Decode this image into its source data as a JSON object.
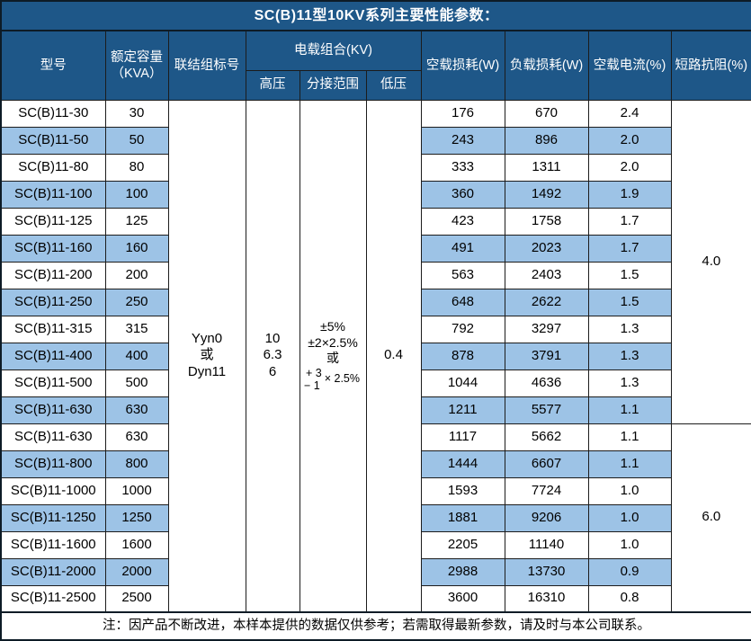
{
  "title": "SC(B)11型10KV系列主要性能参数：",
  "colors": {
    "header_bg": "#1E5788",
    "stripe_bg": "#9DC3E6",
    "header_text": "#FFFFFF",
    "body_text": "#000000",
    "border": "#1C1C1C"
  },
  "header": {
    "model": "型号",
    "capacity_line1": "额定容量",
    "capacity_line2": "（KVA）",
    "connection_group": "联结组标号",
    "voltage_combo": "电载组合(KV)",
    "high_voltage": "高压",
    "tap_range": "分接范围",
    "low_voltage": "低压",
    "no_load_loss": "空载损耗(W)",
    "load_loss": "负载损耗(W)",
    "no_load_current": "空载电流(%)",
    "short_circuit_impedance": "短路抗阻(%)"
  },
  "merged": {
    "connection_lines": [
      "Yyn0",
      "或",
      "Dyn11"
    ],
    "high_voltage_lines": [
      "10",
      "6.3",
      "6"
    ],
    "tap_lines": [
      "±5%",
      "±2×2.5%",
      "或"
    ],
    "tap_fraction": {
      "top": "+ 3",
      "bottom": "− 1",
      "suffix": "× 2.5%"
    },
    "low_voltage": "0.4",
    "impedance_groups": [
      {
        "value": "4.0",
        "rows": 12
      },
      {
        "value": "6.0",
        "rows": 7
      }
    ]
  },
  "rows": [
    {
      "model": "SC(B)11-30",
      "capacity": "30",
      "no_load_loss": "176",
      "load_loss": "670",
      "no_load_current": "2.4"
    },
    {
      "model": "SC(B)11-50",
      "capacity": "50",
      "no_load_loss": "243",
      "load_loss": "896",
      "no_load_current": "2.0"
    },
    {
      "model": "SC(B)11-80",
      "capacity": "80",
      "no_load_loss": "333",
      "load_loss": "1311",
      "no_load_current": "2.0"
    },
    {
      "model": "SC(B)11-100",
      "capacity": "100",
      "no_load_loss": "360",
      "load_loss": "1492",
      "no_load_current": "1.9"
    },
    {
      "model": "SC(B)11-125",
      "capacity": "125",
      "no_load_loss": "423",
      "load_loss": "1758",
      "no_load_current": "1.7"
    },
    {
      "model": "SC(B)11-160",
      "capacity": "160",
      "no_load_loss": "491",
      "load_loss": "2023",
      "no_load_current": "1.7"
    },
    {
      "model": "SC(B)11-200",
      "capacity": "200",
      "no_load_loss": "563",
      "load_loss": "2403",
      "no_load_current": "1.5"
    },
    {
      "model": "SC(B)11-250",
      "capacity": "250",
      "no_load_loss": "648",
      "load_loss": "2622",
      "no_load_current": "1.5"
    },
    {
      "model": "SC(B)11-315",
      "capacity": "315",
      "no_load_loss": "792",
      "load_loss": "3297",
      "no_load_current": "1.3"
    },
    {
      "model": "SC(B)11-400",
      "capacity": "400",
      "no_load_loss": "878",
      "load_loss": "3791",
      "no_load_current": "1.3"
    },
    {
      "model": "SC(B)11-500",
      "capacity": "500",
      "no_load_loss": "1044",
      "load_loss": "4636",
      "no_load_current": "1.3"
    },
    {
      "model": "SC(B)11-630",
      "capacity": "630",
      "no_load_loss": "1211",
      "load_loss": "5577",
      "no_load_current": "1.1"
    },
    {
      "model": "SC(B)11-630",
      "capacity": "630",
      "no_load_loss": "1117",
      "load_loss": "5662",
      "no_load_current": "1.1"
    },
    {
      "model": "SC(B)11-800",
      "capacity": "800",
      "no_load_loss": "1444",
      "load_loss": "6607",
      "no_load_current": "1.1"
    },
    {
      "model": "SC(B)11-1000",
      "capacity": "1000",
      "no_load_loss": "1593",
      "load_loss": "7724",
      "no_load_current": "1.0"
    },
    {
      "model": "SC(B)11-1250",
      "capacity": "1250",
      "no_load_loss": "1881",
      "load_loss": "9206",
      "no_load_current": "1.0"
    },
    {
      "model": "SC(B)11-1600",
      "capacity": "1600",
      "no_load_loss": "2205",
      "load_loss": "11140",
      "no_load_current": "1.0"
    },
    {
      "model": "SC(B)11-2000",
      "capacity": "2000",
      "no_load_loss": "2988",
      "load_loss": "13730",
      "no_load_current": "0.9"
    },
    {
      "model": "SC(B)11-2500",
      "capacity": "2500",
      "no_load_loss": "3600",
      "load_loss": "16310",
      "no_load_current": "0.8"
    }
  ],
  "footer_note": "注：因产品不断改进，本样本提供的数据仅供参考；若需取得最新参数，请及时与本公司联系。"
}
